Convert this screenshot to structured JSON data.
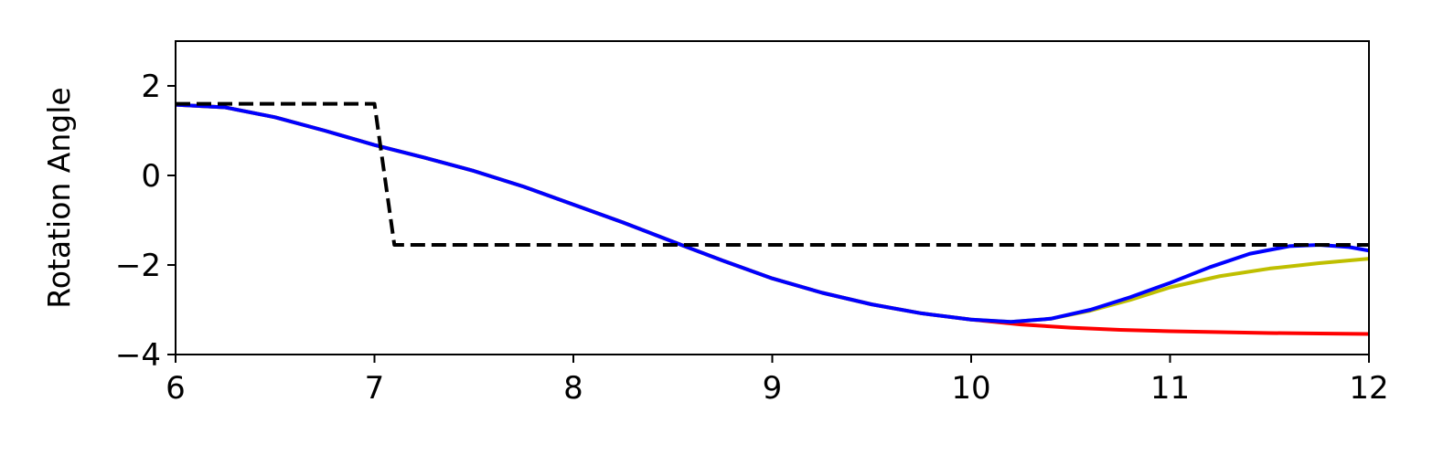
{
  "chart_data": {
    "type": "line",
    "title": "",
    "xlabel": "",
    "ylabel": "Rotation Angle",
    "xlim": [
      6,
      12
    ],
    "ylim": [
      -4,
      3
    ],
    "xticks": [
      6,
      7,
      8,
      9,
      10,
      11,
      12
    ],
    "xtick_labels": [
      "6",
      "7",
      "8",
      "9",
      "10",
      "11",
      "12"
    ],
    "yticks": [
      -4,
      -2,
      0,
      2
    ],
    "ytick_labels": [
      "−4",
      "−2",
      "0",
      "2"
    ],
    "grid": false,
    "legend": "none",
    "series": [
      {
        "color": "#000000",
        "dashed": true,
        "x": [
          6.0,
          7.0,
          7.1,
          12.0
        ],
        "y": [
          1.6,
          1.6,
          -1.55,
          -1.55
        ]
      },
      {
        "color": "#ff0000",
        "dashed": false,
        "x": [
          6.0,
          6.25,
          6.5,
          6.75,
          7.0,
          7.25,
          7.5,
          7.75,
          8.0,
          8.25,
          8.5,
          8.75,
          9.0,
          9.25,
          9.5,
          9.75,
          10.0,
          10.25,
          10.5,
          10.75,
          11.0,
          11.25,
          11.5,
          11.75,
          12.0
        ],
        "y": [
          1.58,
          1.52,
          1.3,
          1.0,
          0.68,
          0.4,
          0.1,
          -0.25,
          -0.65,
          -1.05,
          -1.48,
          -1.9,
          -2.3,
          -2.62,
          -2.88,
          -3.08,
          -3.22,
          -3.33,
          -3.4,
          -3.45,
          -3.48,
          -3.5,
          -3.52,
          -3.53,
          -3.54
        ]
      },
      {
        "color": "#bfbf00",
        "dashed": false,
        "x": [
          6.0,
          6.25,
          6.5,
          6.75,
          7.0,
          7.25,
          7.5,
          7.75,
          8.0,
          8.25,
          8.5,
          8.75,
          9.0,
          9.25,
          9.5,
          9.75,
          10.0,
          10.2,
          10.4,
          10.6,
          10.8,
          11.0,
          11.25,
          11.5,
          11.75,
          12.0
        ],
        "y": [
          1.58,
          1.52,
          1.3,
          1.0,
          0.68,
          0.4,
          0.1,
          -0.25,
          -0.65,
          -1.05,
          -1.48,
          -1.9,
          -2.3,
          -2.62,
          -2.88,
          -3.08,
          -3.22,
          -3.27,
          -3.2,
          -3.02,
          -2.78,
          -2.5,
          -2.25,
          -2.08,
          -1.96,
          -1.86
        ]
      },
      {
        "color": "#0000ff",
        "dashed": false,
        "x": [
          6.0,
          6.25,
          6.5,
          6.75,
          7.0,
          7.25,
          7.5,
          7.75,
          8.0,
          8.25,
          8.5,
          8.75,
          9.0,
          9.25,
          9.5,
          9.75,
          10.0,
          10.2,
          10.4,
          10.6,
          10.8,
          11.0,
          11.2,
          11.4,
          11.6,
          11.75,
          11.9,
          12.0
        ],
        "y": [
          1.58,
          1.52,
          1.3,
          1.0,
          0.68,
          0.4,
          0.1,
          -0.25,
          -0.65,
          -1.05,
          -1.48,
          -1.9,
          -2.3,
          -2.62,
          -2.88,
          -3.08,
          -3.22,
          -3.27,
          -3.2,
          -3.0,
          -2.72,
          -2.4,
          -2.05,
          -1.75,
          -1.58,
          -1.55,
          -1.6,
          -1.68
        ]
      }
    ]
  }
}
